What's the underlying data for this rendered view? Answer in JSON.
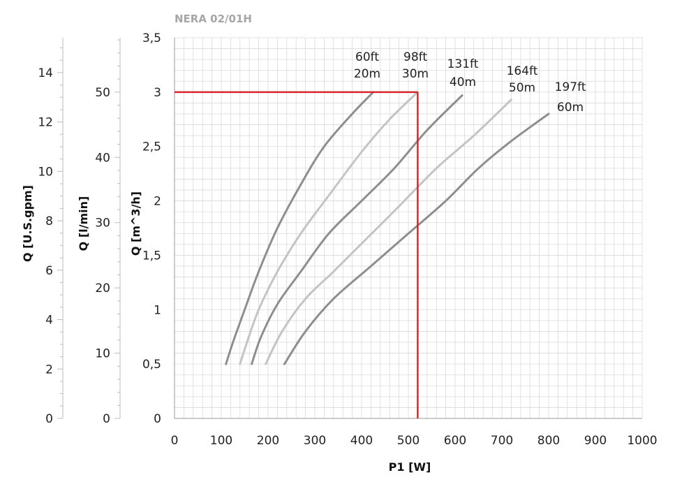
{
  "chart_data": {
    "type": "line",
    "title": "NERA 02/01H",
    "xlabel": "P1 [W]",
    "ylabel": "Q [m^3/h]",
    "xlim": [
      0,
      1000
    ],
    "ylim": [
      0,
      3.5
    ],
    "x_ticks": [
      "0",
      "100",
      "200",
      "300",
      "400",
      "500",
      "600",
      "700",
      "800",
      "900",
      "1000"
    ],
    "y_ticks": [
      "0",
      "0,5",
      "1",
      "1,5",
      "2",
      "2,5",
      "3",
      "3,5"
    ],
    "secondary_axes": [
      {
        "label": "Q [l/min]",
        "ticks": [
          {
            "value": 0,
            "label": "0"
          },
          {
            "value": 10,
            "label": "10"
          },
          {
            "value": 20,
            "label": "20"
          },
          {
            "value": 30,
            "label": "30"
          },
          {
            "value": 40,
            "label": "40"
          },
          {
            "value": 50,
            "label": "50"
          }
        ]
      },
      {
        "label": "Q [U.S.gpm]",
        "ticks": [
          {
            "value": 0,
            "label": "0"
          },
          {
            "value": 2,
            "label": "2"
          },
          {
            "value": 4,
            "label": "4"
          },
          {
            "value": 6,
            "label": "6"
          },
          {
            "value": 8,
            "label": "8"
          },
          {
            "value": 10,
            "label": "10"
          },
          {
            "value": 12,
            "label": "12"
          },
          {
            "value": 14,
            "label": "14"
          }
        ]
      }
    ],
    "series": [
      {
        "label_ft": "60ft",
        "label_m": "20m",
        "color": "#8e8e8e",
        "x": [
          110,
          125,
          150,
          180,
          220,
          270,
          320,
          380,
          425
        ],
        "y": [
          0.5,
          0.7,
          1.0,
          1.35,
          1.75,
          2.15,
          2.5,
          2.8,
          3.0
        ]
      },
      {
        "label_ft": "98ft",
        "label_m": "30m",
        "color": "#c4c4c4",
        "x": [
          140,
          155,
          180,
          220,
          270,
          330,
          400,
          460,
          520
        ],
        "y": [
          0.5,
          0.7,
          1.0,
          1.35,
          1.7,
          2.05,
          2.45,
          2.75,
          3.0
        ]
      },
      {
        "label_ft": "131ft",
        "label_m": "40m",
        "color": "#8e8e8e",
        "x": [
          165,
          185,
          220,
          270,
          330,
          400,
          470,
          540,
          615
        ],
        "y": [
          0.5,
          0.75,
          1.05,
          1.35,
          1.7,
          2.0,
          2.3,
          2.65,
          2.97
        ]
      },
      {
        "label_ft": "164ft",
        "label_m": "50m",
        "color": "#c4c4c4",
        "x": [
          195,
          230,
          280,
          340,
          410,
          480,
          560,
          640,
          720
        ],
        "y": [
          0.5,
          0.8,
          1.1,
          1.35,
          1.65,
          1.95,
          2.3,
          2.6,
          2.93
        ]
      },
      {
        "label_ft": "197ft",
        "label_m": "60m",
        "color": "#8e8e8e",
        "x": [
          235,
          280,
          340,
          420,
          500,
          580,
          650,
          720,
          800
        ],
        "y": [
          0.5,
          0.8,
          1.1,
          1.4,
          1.7,
          2.0,
          2.3,
          2.55,
          2.8
        ]
      }
    ],
    "operating_point": {
      "x": 520,
      "y": 3.0,
      "color": "#d6262b"
    },
    "grid": true,
    "colors": {
      "title": "#a6a6a6",
      "grid": "#d9d9d9",
      "axis": "#9a9a9a"
    }
  }
}
